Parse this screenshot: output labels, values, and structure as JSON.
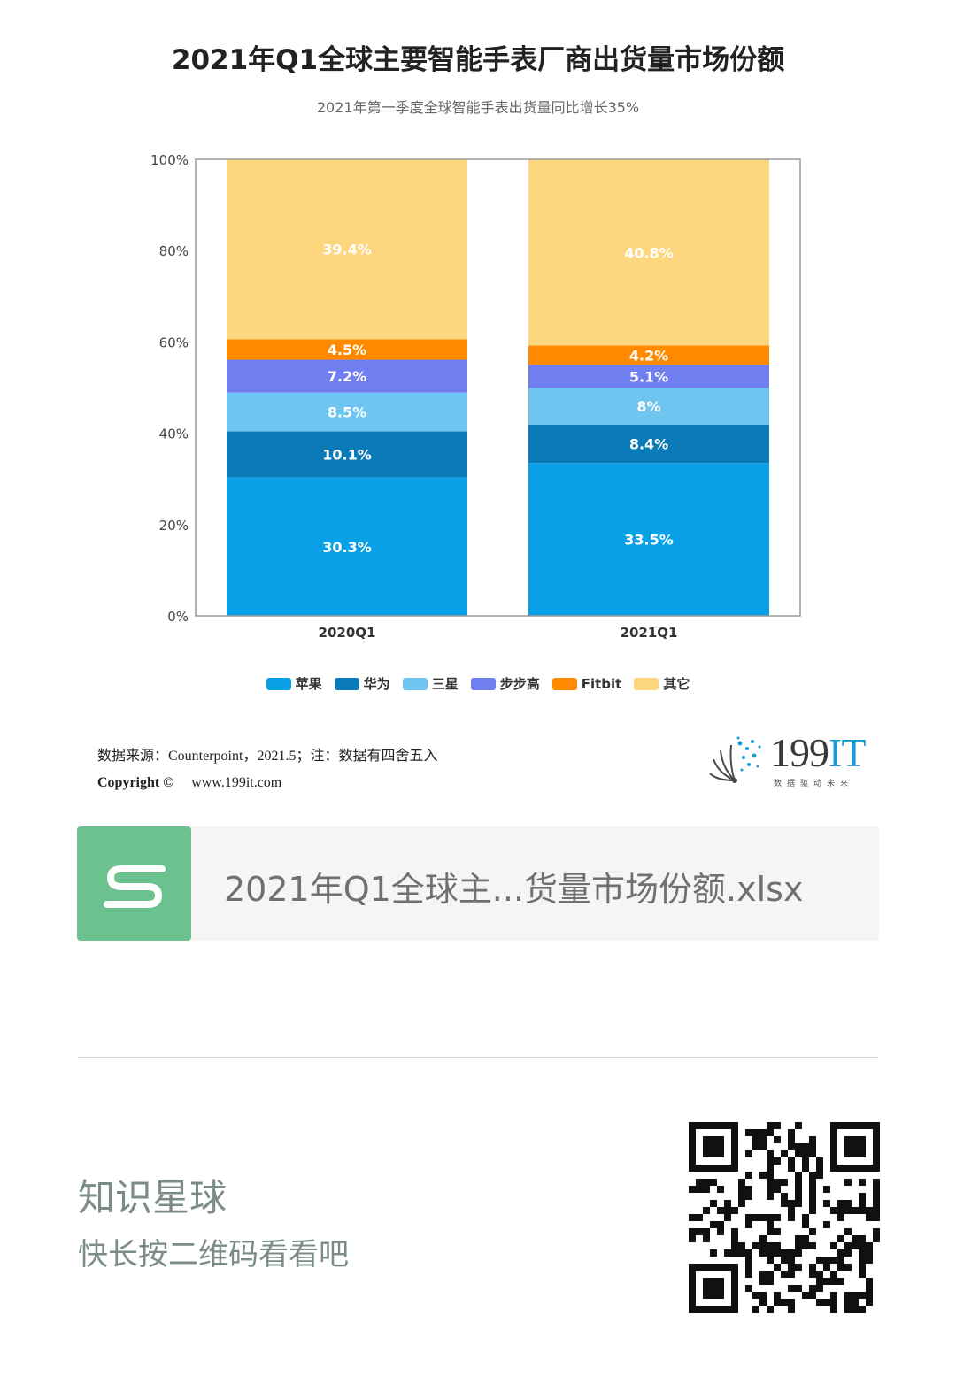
{
  "title": "2021年Q1全球主要智能手表厂商出货量市场份额",
  "subtitle": "2021年第一季度全球智能手表出货量同比增长35%",
  "chart_data": {
    "type": "bar",
    "stacked": true,
    "categories": [
      "2020Q1",
      "2021Q1"
    ],
    "y_ticks": [
      "0%",
      "20%",
      "40%",
      "60%",
      "80%",
      "100%"
    ],
    "ylim": [
      0,
      100
    ],
    "grid": false,
    "legend_position": "bottom",
    "series": [
      {
        "name": "苹果",
        "color": "#0aa0e6",
        "values": [
          30.3,
          33.5
        ],
        "labels": [
          "30.3%",
          "33.5%"
        ]
      },
      {
        "name": "华为",
        "color": "#0a7ab8",
        "values": [
          10.1,
          8.4
        ],
        "labels": [
          "10.1%",
          "8.4%"
        ]
      },
      {
        "name": "三星",
        "color": "#6ec6f0",
        "values": [
          8.5,
          8
        ],
        "labels": [
          "8.5%",
          "8%"
        ]
      },
      {
        "name": "步步高",
        "color": "#6f7ff0",
        "values": [
          7.2,
          5.1
        ],
        "labels": [
          "7.2%",
          "5.1%"
        ]
      },
      {
        "name": "Fitbit",
        "color": "#ff8a00",
        "values": [
          4.5,
          4.2
        ],
        "labels": [
          "4.5%",
          "4.2%"
        ]
      },
      {
        "name": "其它",
        "color": "#fdd67e",
        "values": [
          39.4,
          40.8
        ],
        "labels": [
          "39.4%",
          "40.8%"
        ]
      }
    ]
  },
  "source": {
    "line1": "数据来源：Counterpoint，2021.5；注：数据有四舍五入",
    "copyright": "Copyright ©",
    "url": "www.199it.com"
  },
  "brand": {
    "name_num": "199",
    "name_it": "IT",
    "tagline": "数据驱动未来"
  },
  "file_card": {
    "icon": "spreadsheet-s-icon",
    "filename": "2021年Q1全球主...货量市场份额.xlsx"
  },
  "promo": {
    "title": "知识星球",
    "subtitle": "快长按二维码看看吧"
  }
}
